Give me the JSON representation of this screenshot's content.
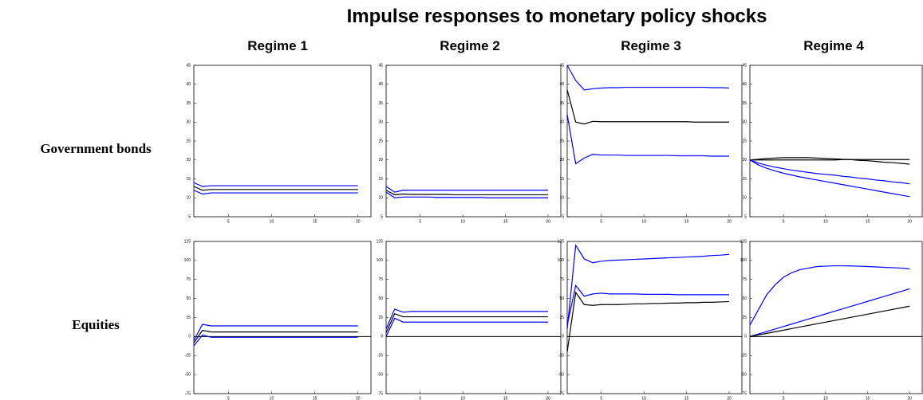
{
  "title": "Impulse responses to monetary policy shocks",
  "columns": [
    "Regime 1",
    "Regime 2",
    "Regime 3",
    "Regime 4"
  ],
  "rows": [
    "Government bonds",
    "Equities"
  ],
  "chart_data": [
    {
      "type": "line",
      "x": [
        1,
        2,
        3,
        4,
        5,
        6,
        7,
        8,
        9,
        10,
        11,
        12,
        13,
        14,
        15,
        16,
        17,
        18,
        19,
        20
      ],
      "xlim": [
        1,
        21.5
      ],
      "ylim": [
        5,
        45
      ],
      "xticks": [
        5,
        10,
        15,
        20
      ],
      "yticks": [
        5,
        10,
        15,
        20,
        25,
        30,
        35,
        40,
        45
      ],
      "series": [
        {
          "color": "#0000ff",
          "values": [
            14,
            13,
            13.2,
            13.2,
            13.2,
            13.2,
            13.2,
            13.2,
            13.2,
            13.2,
            13.2,
            13.2,
            13.2,
            13.2,
            13.2,
            13.2,
            13.2,
            13.2,
            13.2,
            13.2
          ]
        },
        {
          "color": "#000000",
          "values": [
            13,
            12,
            12.2,
            12.2,
            12.2,
            12.2,
            12.2,
            12.2,
            12.2,
            12.2,
            12.2,
            12.2,
            12.2,
            12.2,
            12.2,
            12.2,
            12.2,
            12.2,
            12.2,
            12.2
          ]
        },
        {
          "color": "#0000ff",
          "values": [
            12,
            11,
            11.3,
            11.3,
            11.3,
            11.3,
            11.3,
            11.3,
            11.3,
            11.3,
            11.3,
            11.3,
            11.3,
            11.3,
            11.3,
            11.3,
            11.3,
            11.3,
            11.3,
            11.3
          ]
        }
      ]
    },
    {
      "type": "line",
      "x": [
        1,
        2,
        3,
        4,
        5,
        6,
        7,
        8,
        9,
        10,
        11,
        12,
        13,
        14,
        15,
        16,
        17,
        18,
        19,
        20
      ],
      "xlim": [
        1,
        21.5
      ],
      "ylim": [
        5,
        45
      ],
      "xticks": [
        5,
        10,
        15,
        20
      ],
      "yticks": [
        5,
        10,
        15,
        20,
        25,
        30,
        35,
        40,
        45
      ],
      "series": [
        {
          "color": "#0000ff",
          "values": [
            13,
            11.5,
            12,
            12,
            12,
            12,
            12,
            12,
            12,
            12,
            12,
            12,
            12,
            12,
            12,
            12,
            12,
            12,
            12,
            12
          ]
        },
        {
          "color": "#000000",
          "values": [
            12,
            10.8,
            11,
            10.9,
            10.9,
            10.9,
            10.9,
            10.9,
            10.8,
            10.8,
            10.8,
            10.8,
            10.8,
            10.8,
            10.8,
            10.8,
            10.8,
            10.8,
            10.8,
            10.8
          ]
        },
        {
          "color": "#0000ff",
          "values": [
            11.5,
            10,
            10.2,
            10.2,
            10.2,
            10.2,
            10.1,
            10.1,
            10.1,
            10.1,
            10.1,
            10.1,
            10,
            10,
            10,
            10,
            10,
            10,
            10,
            10
          ]
        }
      ]
    },
    {
      "type": "line",
      "x": [
        1,
        2,
        3,
        4,
        5,
        6,
        7,
        8,
        9,
        10,
        11,
        12,
        13,
        14,
        15,
        16,
        17,
        18,
        19,
        20
      ],
      "xlim": [
        1,
        21.5
      ],
      "ylim": [
        5,
        45
      ],
      "xticks": [
        5,
        10,
        15,
        20
      ],
      "yticks": [
        5,
        10,
        15,
        20,
        25,
        30,
        35,
        40,
        45
      ],
      "series": [
        {
          "color": "#0000ff",
          "values": [
            45,
            41,
            38.5,
            38.8,
            39,
            39.1,
            39.1,
            39.2,
            39.2,
            39.2,
            39.2,
            39.2,
            39.2,
            39.2,
            39.2,
            39.2,
            39.2,
            39.1,
            39.1,
            39
          ]
        },
        {
          "color": "#000000",
          "values": [
            38.5,
            30,
            29.5,
            30.2,
            30.1,
            30.1,
            30.1,
            30.1,
            30.1,
            30.1,
            30.1,
            30.1,
            30.1,
            30.1,
            30.1,
            30,
            30,
            30,
            30,
            30
          ]
        },
        {
          "color": "#0000ff",
          "values": [
            32,
            19,
            20.5,
            21.5,
            21.3,
            21.3,
            21.3,
            21.2,
            21.2,
            21.2,
            21.2,
            21.2,
            21.2,
            21.1,
            21.1,
            21.1,
            21.1,
            21,
            21,
            21
          ]
        }
      ]
    },
    {
      "type": "line",
      "x": [
        1,
        2,
        3,
        4,
        5,
        6,
        7,
        8,
        9,
        10,
        11,
        12,
        13,
        14,
        15,
        16,
        17,
        18,
        19,
        20
      ],
      "xlim": [
        1,
        21.5
      ],
      "ylim": [
        5,
        45
      ],
      "xticks": [
        5,
        10,
        15,
        20
      ],
      "yticks": [
        5,
        10,
        15,
        20,
        25,
        30,
        35,
        40,
        45
      ],
      "series": [
        {
          "color": "#000000",
          "values": [
            20,
            20.2,
            20.4,
            20.5,
            20.6,
            20.6,
            20.6,
            20.6,
            20.5,
            20.4,
            20.3,
            20.2,
            20.1,
            19.9,
            19.8,
            19.6,
            19.4,
            19.3,
            19.1,
            18.9
          ]
        },
        {
          "color": "#000000",
          "values": [
            20,
            20,
            20,
            20,
            20,
            20,
            20,
            20,
            20,
            20,
            20,
            20.1,
            20.1,
            20.1,
            20.1,
            20.1,
            20.1,
            20.1,
            20.1,
            20.1
          ]
        },
        {
          "color": "#0000ff",
          "values": [
            20,
            19.2,
            18.6,
            18.1,
            17.7,
            17.3,
            17,
            16.7,
            16.4,
            16.2,
            16,
            15.7,
            15.5,
            15.2,
            15,
            14.7,
            14.5,
            14.2,
            14,
            13.7
          ]
        },
        {
          "color": "#0000ff",
          "values": [
            20,
            18.7,
            17.8,
            17.1,
            16.5,
            16,
            15.5,
            15.1,
            14.7,
            14.3,
            13.9,
            13.5,
            13.1,
            12.7,
            12.3,
            11.9,
            11.5,
            11.1,
            10.7,
            10.3
          ]
        }
      ]
    },
    {
      "type": "line",
      "x": [
        1,
        2,
        3,
        4,
        5,
        6,
        7,
        8,
        9,
        10,
        11,
        12,
        13,
        14,
        15,
        16,
        17,
        18,
        19,
        20
      ],
      "xlim": [
        1,
        21.5
      ],
      "ylim": [
        -75,
        125
      ],
      "xticks": [
        5,
        10,
        15,
        20
      ],
      "yticks": [
        -75,
        -50,
        -25,
        0,
        25,
        50,
        75,
        100,
        125
      ],
      "zero_line": true,
      "series": [
        {
          "color": "#0000ff",
          "values": [
            -5,
            16,
            14,
            14,
            14,
            14,
            14,
            14,
            14,
            14,
            14,
            14,
            14,
            14,
            14,
            14,
            14,
            14,
            14,
            14
          ]
        },
        {
          "color": "#000000",
          "values": [
            -8,
            8,
            6,
            6,
            6,
            6,
            6,
            6,
            6,
            6,
            6,
            6,
            6,
            6,
            6,
            6,
            6,
            6,
            6,
            6
          ]
        },
        {
          "color": "#0000ff",
          "values": [
            -12,
            2,
            -1,
            -1,
            -1,
            -1,
            -1,
            -1,
            -1,
            -1,
            -1,
            -1,
            -1,
            -1,
            -1,
            -1,
            -1,
            -1,
            -1,
            -1
          ]
        }
      ]
    },
    {
      "type": "line",
      "x": [
        1,
        2,
        3,
        4,
        5,
        6,
        7,
        8,
        9,
        10,
        11,
        12,
        13,
        14,
        15,
        16,
        17,
        18,
        19,
        20
      ],
      "xlim": [
        1,
        21.5
      ],
      "ylim": [
        -75,
        125
      ],
      "xticks": [
        5,
        10,
        15,
        20
      ],
      "yticks": [
        -75,
        -50,
        -25,
        0,
        25,
        50,
        75,
        100,
        125
      ],
      "zero_line": true,
      "series": [
        {
          "color": "#0000ff",
          "values": [
            10,
            36,
            32,
            33,
            33,
            33,
            33,
            33,
            33,
            33,
            33,
            33,
            33,
            33,
            33,
            33,
            33,
            33,
            33,
            33
          ]
        },
        {
          "color": "#000000",
          "values": [
            5,
            30,
            26,
            26,
            26,
            26,
            26,
            26,
            26,
            26,
            26,
            26,
            26,
            26,
            26,
            26,
            26,
            26,
            26,
            26
          ]
        },
        {
          "color": "#0000ff",
          "values": [
            0,
            24,
            19,
            19,
            19,
            19,
            19,
            19,
            19,
            19,
            19,
            19,
            19,
            19,
            19,
            19,
            19,
            19,
            19,
            19
          ]
        }
      ]
    },
    {
      "type": "line",
      "x": [
        1,
        2,
        3,
        4,
        5,
        6,
        7,
        8,
        9,
        10,
        11,
        12,
        13,
        14,
        15,
        16,
        17,
        18,
        19,
        20
      ],
      "xlim": [
        1,
        21.5
      ],
      "ylim": [
        -75,
        125
      ],
      "xticks": [
        5,
        10,
        15,
        20
      ],
      "yticks": [
        -75,
        -50,
        -25,
        0,
        25,
        50,
        75,
        100,
        125
      ],
      "zero_line": true,
      "series": [
        {
          "color": "#0000ff",
          "values": [
            10,
            120,
            102,
            97,
            99,
            100,
            100.5,
            101,
            101.5,
            102,
            102.5,
            103,
            103.5,
            104,
            104.5,
            105,
            105.5,
            106.5,
            107,
            108
          ]
        },
        {
          "color": "#0000ff",
          "values": [
            15,
            67,
            53,
            56,
            57,
            56,
            56,
            56,
            56,
            55.5,
            55.5,
            55.5,
            55.5,
            55,
            55,
            55,
            55,
            55,
            55,
            55
          ]
        },
        {
          "color": "#000000",
          "values": [
            -20,
            58,
            42,
            41,
            42,
            42,
            42,
            42.5,
            43,
            43,
            43.5,
            43.5,
            44,
            44,
            44.5,
            44.5,
            45,
            45,
            45.5,
            46
          ]
        }
      ]
    },
    {
      "type": "line",
      "x": [
        1,
        2,
        3,
        4,
        5,
        6,
        7,
        8,
        9,
        10,
        11,
        12,
        13,
        14,
        15,
        16,
        17,
        18,
        19,
        20
      ],
      "xlim": [
        1,
        21.5
      ],
      "ylim": [
        -75,
        125
      ],
      "xticks": [
        5,
        10,
        15,
        20
      ],
      "yticks": [
        -75,
        -50,
        -25,
        0,
        25,
        50,
        75,
        100,
        125
      ],
      "zero_line": true,
      "series": [
        {
          "color": "#0000ff",
          "values": [
            15,
            35,
            55,
            68,
            78,
            84,
            88,
            90,
            92,
            92.5,
            93,
            93,
            92.8,
            92.5,
            92,
            91.5,
            91,
            90.5,
            90,
            89
          ]
        },
        {
          "color": "#0000ff",
          "values": [
            0,
            3.3,
            6.6,
            9.9,
            13.2,
            16.5,
            19.8,
            23.1,
            26.4,
            29.7,
            33,
            36.3,
            39.6,
            42.9,
            46.2,
            49.5,
            52.8,
            56.1,
            59.4,
            62.7
          ]
        },
        {
          "color": "#000000",
          "values": [
            0,
            2.1,
            4.2,
            6.3,
            8.4,
            10.5,
            12.6,
            14.7,
            16.8,
            18.9,
            21,
            23.1,
            25.2,
            27.3,
            29.4,
            31.5,
            33.6,
            35.7,
            37.8,
            39.9
          ]
        }
      ]
    }
  ]
}
